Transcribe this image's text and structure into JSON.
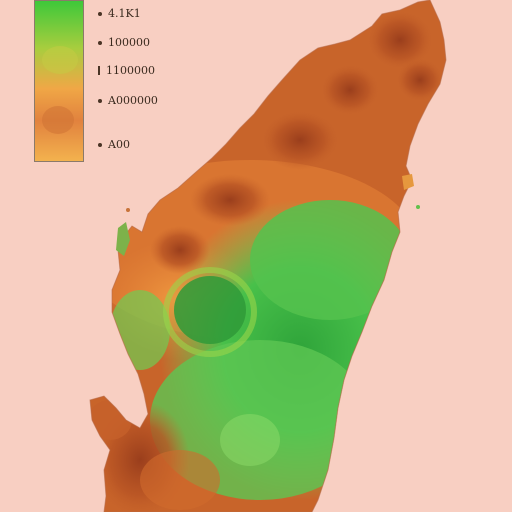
{
  "legend": {
    "labels": [
      "4.1K1",
      "100000",
      "1100000",
      "A000000",
      "A00"
    ],
    "gradient": [
      "#3cc83a",
      "#a8cd3e",
      "#f0a746",
      "#e1823e",
      "#f3b24e"
    ]
  },
  "colors": {
    "background": "#f8cfc2",
    "dry": "#c8642a",
    "wet": "#4cbd4a"
  }
}
